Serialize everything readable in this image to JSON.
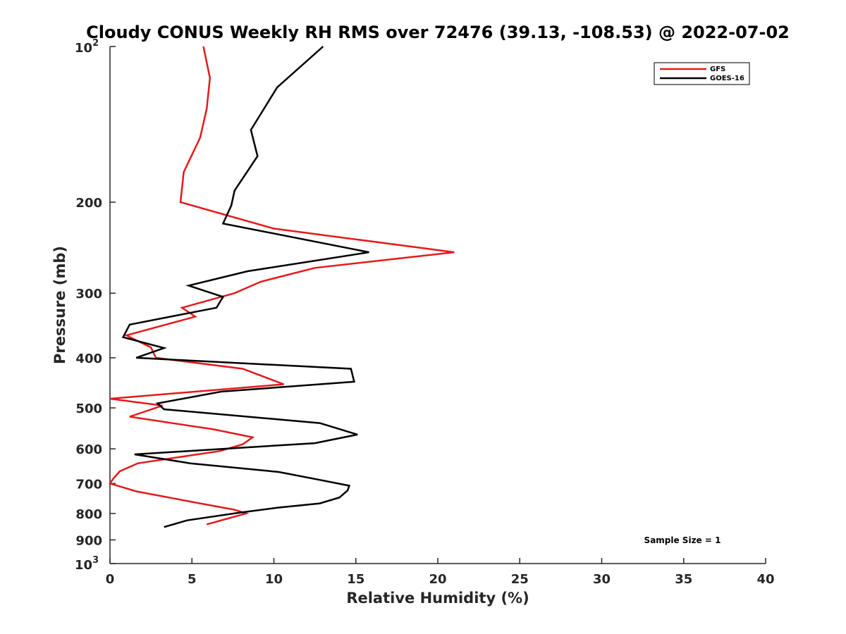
{
  "chart_data": {
    "type": "line",
    "title": "Cloudy CONUS Weekly RH RMS over 72476 (39.13, -108.53) @ 2022-07-02",
    "xlabel": "Relative Humidity (%)",
    "ylabel": "Pressure (mb)",
    "xlim": [
      0,
      40
    ],
    "ylim": [
      100,
      1000
    ],
    "y_scale": "log",
    "y_reversed": true,
    "x_ticks": [
      "0",
      "5",
      "10",
      "15",
      "20",
      "25",
      "30",
      "35",
      "40"
    ],
    "y_ticks": [
      {
        "value": 100,
        "base": "10",
        "exp": "2"
      },
      {
        "value": 200,
        "label": "200"
      },
      {
        "value": 300,
        "label": "300"
      },
      {
        "value": 400,
        "label": "400"
      },
      {
        "value": 500,
        "label": "500"
      },
      {
        "value": 600,
        "label": "600"
      },
      {
        "value": 700,
        "label": "700"
      },
      {
        "value": 800,
        "label": "800"
      },
      {
        "value": 900,
        "label": "900"
      },
      {
        "value": 1000,
        "base": "10",
        "exp": "3"
      }
    ],
    "grid": false,
    "legend_position": "top-right",
    "annotation": "Sample Size = 1",
    "series": [
      {
        "name": "GFS",
        "color": "#e41a1c",
        "x": [
          5.7,
          6.1,
          5.9,
          5.5,
          4.5,
          4.3,
          10.0,
          21.0,
          12.5,
          9.2,
          7.6,
          4.4,
          5.2,
          1.0,
          2.5,
          2.8,
          8.1,
          10.6,
          0.0,
          3.2,
          1.2,
          6.3,
          8.7,
          8.1,
          6.7,
          1.7,
          0.6,
          0.2,
          0.0,
          1.6,
          5.5,
          7.6,
          8.3,
          7.2,
          5.9
        ],
        "y": [
          100,
          115,
          132,
          150,
          175,
          200,
          225,
          250,
          268,
          285,
          300,
          320,
          333,
          362,
          382,
          400,
          420,
          450,
          480,
          495,
          520,
          550,
          570,
          588,
          606,
          640,
          663,
          685,
          700,
          725,
          765,
          787,
          800,
          818,
          840
        ]
      },
      {
        "name": "GOES-16",
        "color": "#000000",
        "x": [
          13.0,
          10.2,
          8.6,
          9.0,
          7.6,
          7.4,
          6.9,
          15.8,
          8.4,
          4.8,
          6.9,
          6.5,
          1.2,
          0.8,
          3.3,
          1.6,
          14.7,
          14.9,
          6.8,
          2.9,
          3.3,
          12.8,
          15.1,
          12.5,
          1.5,
          4.9,
          10.3,
          12.9,
          14.6,
          14.5,
          14.0,
          12.8,
          10.2,
          7.9,
          4.7,
          3.3
        ],
        "y": [
          100,
          120,
          145,
          163,
          190,
          203,
          220,
          250,
          272,
          290,
          305,
          320,
          345,
          365,
          383,
          400,
          420,
          445,
          465,
          490,
          503,
          535,
          563,
          585,
          615,
          640,
          665,
          690,
          707,
          722,
          745,
          765,
          780,
          797,
          825,
          850
        ]
      }
    ]
  }
}
